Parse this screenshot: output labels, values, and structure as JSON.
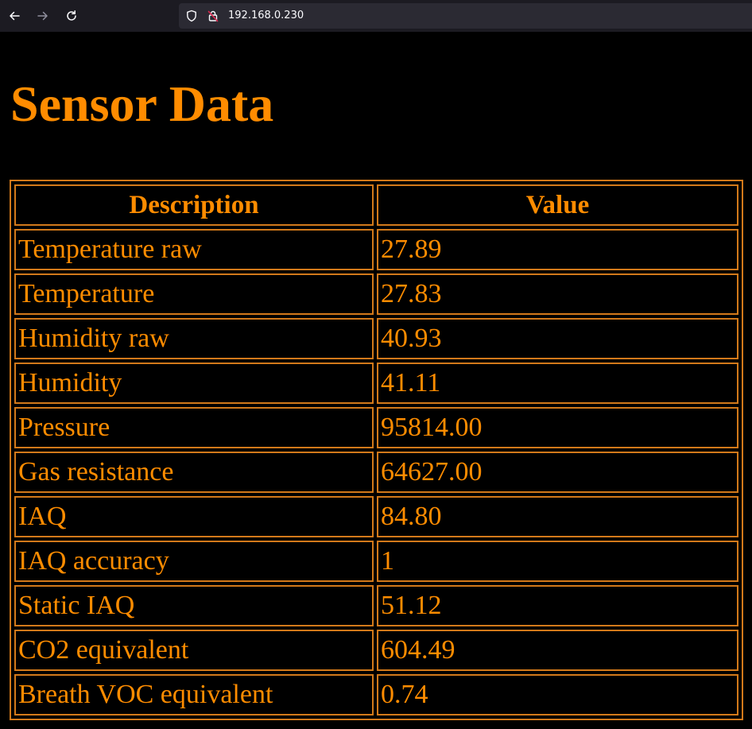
{
  "browser": {
    "back_icon": "back-arrow-icon",
    "forward_icon": "forward-arrow-icon",
    "reload_icon": "reload-icon",
    "shield_icon": "shield-icon",
    "insecure_icon": "insecure-lock-icon",
    "url": "192.168.0.230"
  },
  "page": {
    "title": "Sensor Data",
    "accent_color": "#ff8c00",
    "table": {
      "headers": [
        "Description",
        "Value"
      ],
      "rows": [
        [
          "Temperature raw",
          "27.89"
        ],
        [
          "Temperature",
          "27.83"
        ],
        [
          "Humidity raw",
          "40.93"
        ],
        [
          "Humidity",
          "41.11"
        ],
        [
          "Pressure",
          "95814.00"
        ],
        [
          "Gas resistance",
          "64627.00"
        ],
        [
          "IAQ",
          "84.80"
        ],
        [
          "IAQ accuracy",
          "1"
        ],
        [
          "Static IAQ",
          "51.12"
        ],
        [
          "CO2 equivalent",
          "604.49"
        ],
        [
          "Breath VOC equivalent",
          "0.74"
        ]
      ]
    }
  }
}
